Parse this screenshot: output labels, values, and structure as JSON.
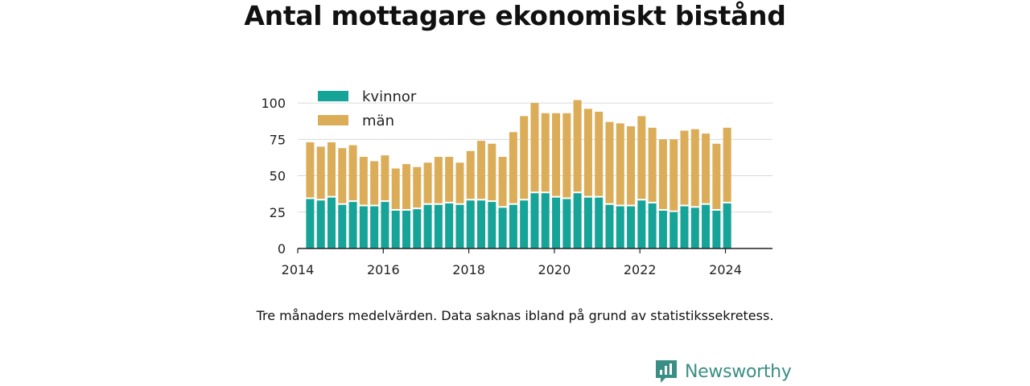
{
  "title": "Antal mottagare ekonomiskt bistånd",
  "caption": "Tre månaders medelvärden. Data saknas ibland på grund av statistikssekretess.",
  "brand": {
    "name": "Newsworthy",
    "icon": "newsworthy-logo-icon",
    "color": "#3a8f85"
  },
  "chart_data": {
    "type": "bar",
    "stacked": true,
    "title": "Antal mottagare ekonomiskt bistånd",
    "xlabel": "",
    "ylabel": "",
    "ylim": [
      0,
      110
    ],
    "yticks": [
      0,
      25,
      50,
      75,
      100
    ],
    "xticks": [
      "2014",
      "2016",
      "2018",
      "2020",
      "2022",
      "2024"
    ],
    "xlim": [
      2014,
      2025.1
    ],
    "grid": true,
    "legend_position": "top-left",
    "x": [
      2014.29,
      2014.54,
      2014.79,
      2015.04,
      2015.29,
      2015.54,
      2015.79,
      2016.04,
      2016.29,
      2016.54,
      2016.79,
      2017.04,
      2017.29,
      2017.54,
      2017.79,
      2018.04,
      2018.29,
      2018.54,
      2018.79,
      2019.04,
      2019.29,
      2019.54,
      2019.79,
      2020.04,
      2020.29,
      2020.54,
      2020.79,
      2021.04,
      2021.29,
      2021.54,
      2021.79,
      2022.04,
      2022.29,
      2022.54,
      2022.79,
      2023.04,
      2023.29,
      2023.54,
      2023.79,
      2024.04
    ],
    "series": [
      {
        "name": "kvinnor",
        "color": "#16a398",
        "values": [
          34,
          33,
          35,
          30,
          32,
          29,
          29,
          32,
          26,
          26,
          27,
          30,
          30,
          31,
          30,
          33,
          33,
          32,
          28,
          30,
          33,
          38,
          38,
          35,
          34,
          38,
          35,
          35,
          30,
          29,
          29,
          33,
          31,
          26,
          25,
          29,
          28,
          30,
          26,
          31
        ]
      },
      {
        "name": "män",
        "color": "#dcad58",
        "values": [
          39,
          37,
          38,
          39,
          39,
          34,
          31,
          32,
          29,
          32,
          29,
          29,
          33,
          32,
          29,
          34,
          41,
          40,
          35,
          50,
          58,
          62,
          55,
          58,
          59,
          64,
          61,
          59,
          57,
          57,
          55,
          58,
          52,
          49,
          50,
          52,
          54,
          49,
          46,
          52
        ]
      }
    ]
  }
}
